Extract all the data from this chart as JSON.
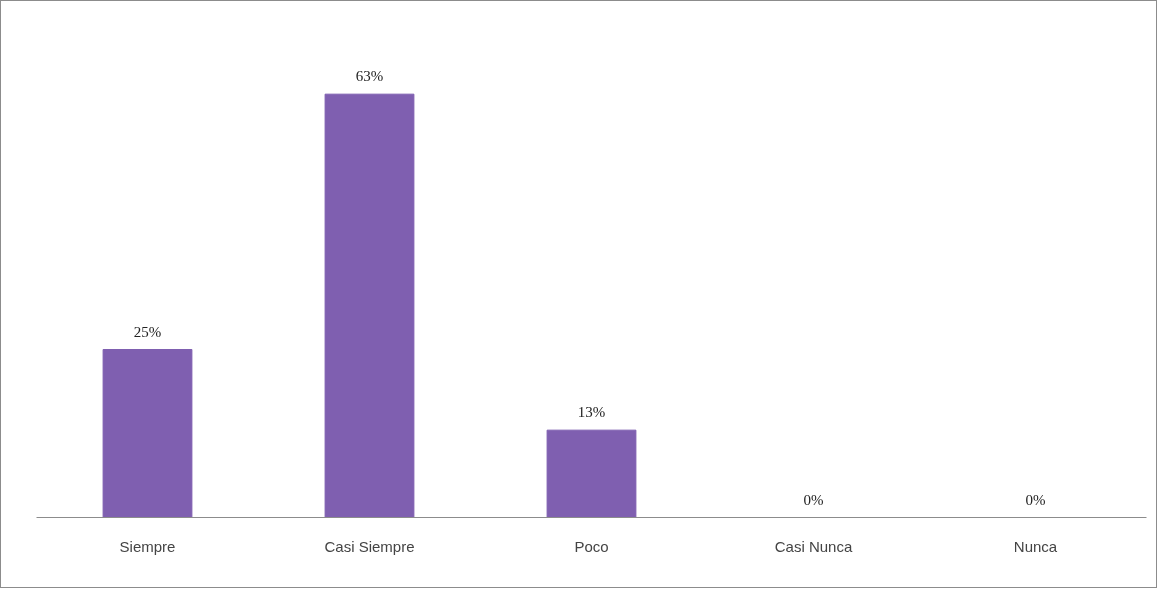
{
  "chart_data": {
    "type": "bar",
    "categories": [
      "Siempre",
      "Casi Siempre",
      "Poco",
      "Casi Nunca",
      "Nunca"
    ],
    "values": [
      25,
      63,
      13,
      0,
      0
    ],
    "color": "#7f5fb0",
    "value_labels": [
      "25%",
      "63%",
      "13%",
      "0%",
      "0%"
    ],
    "grid": false
  }
}
